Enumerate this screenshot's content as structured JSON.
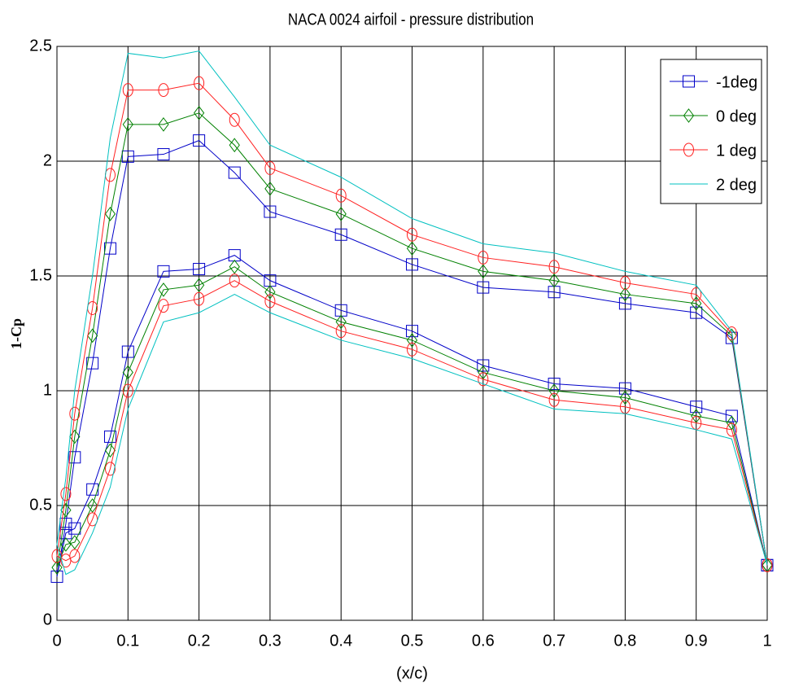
{
  "chart_data": {
    "type": "line",
    "title": "NACA 0024 airfoil - pressure distribution",
    "xlabel": "(x/c)",
    "ylabel": "1-Cp",
    "x": [
      1,
      0.95,
      0.9,
      0.8,
      0.7,
      0.6,
      0.5,
      0.4,
      0.3,
      0.25,
      0.2,
      0.15,
      0.1,
      0.075,
      0.05,
      0.025,
      0.0125,
      0,
      0.0125,
      0.025,
      0.05,
      0.075,
      0.1,
      0.15,
      0.2,
      0.25,
      0.3,
      0.4,
      0.5,
      0.6,
      0.7,
      0.8,
      0.9,
      0.95,
      1
    ],
    "series": [
      {
        "name": "-1deg",
        "color": "#0000c8",
        "marker": "square",
        "values": [
          0.24,
          1.23,
          1.34,
          1.38,
          1.43,
          1.45,
          1.55,
          1.68,
          1.78,
          1.95,
          2.09,
          2.03,
          2.02,
          1.62,
          1.12,
          0.71,
          0.42,
          0.19,
          0.38,
          0.4,
          0.57,
          0.8,
          1.17,
          1.52,
          1.53,
          1.59,
          1.48,
          1.35,
          1.26,
          1.11,
          1.03,
          1.01,
          0.93,
          0.89,
          0.24
        ]
      },
      {
        "name": "0 deg",
        "color": "#008000",
        "marker": "diamond",
        "values": [
          0.24,
          1.24,
          1.38,
          1.42,
          1.48,
          1.52,
          1.62,
          1.77,
          1.88,
          2.07,
          2.21,
          2.16,
          2.16,
          1.77,
          1.24,
          0.8,
          0.48,
          0.23,
          0.33,
          0.34,
          0.5,
          0.74,
          1.08,
          1.44,
          1.46,
          1.54,
          1.43,
          1.3,
          1.22,
          1.08,
          1.0,
          0.97,
          0.89,
          0.86,
          0.24
        ]
      },
      {
        "name": "1 deg",
        "color": "#ff2020",
        "marker": "circle",
        "values": [
          0.24,
          1.25,
          1.42,
          1.47,
          1.54,
          1.58,
          1.68,
          1.85,
          1.97,
          2.18,
          2.34,
          2.31,
          2.31,
          1.94,
          1.36,
          0.9,
          0.55,
          0.28,
          0.26,
          0.28,
          0.44,
          0.66,
          1.0,
          1.37,
          1.4,
          1.48,
          1.39,
          1.26,
          1.18,
          1.05,
          0.96,
          0.93,
          0.86,
          0.83,
          0.24
        ]
      },
      {
        "name": "2 deg",
        "color": "#00c0c0",
        "marker": "none",
        "values": [
          0.24,
          1.26,
          1.46,
          1.52,
          1.6,
          1.64,
          1.75,
          1.93,
          2.07,
          2.28,
          2.48,
          2.45,
          2.47,
          2.1,
          1.5,
          1.0,
          0.62,
          0.33,
          0.2,
          0.22,
          0.38,
          0.58,
          0.92,
          1.3,
          1.34,
          1.42,
          1.34,
          1.22,
          1.14,
          1.03,
          0.92,
          0.9,
          0.83,
          0.79,
          0.24
        ]
      }
    ],
    "xlim": [
      0,
      1
    ],
    "xticks": [
      0,
      0.1,
      0.2,
      0.3,
      0.4,
      0.5,
      0.6,
      0.7,
      0.8,
      0.9,
      1
    ],
    "ylim": [
      0,
      2.5
    ],
    "yticks": [
      0,
      0.5,
      1,
      1.5,
      2,
      2.5
    ],
    "grid": true,
    "legend": "upper right"
  }
}
